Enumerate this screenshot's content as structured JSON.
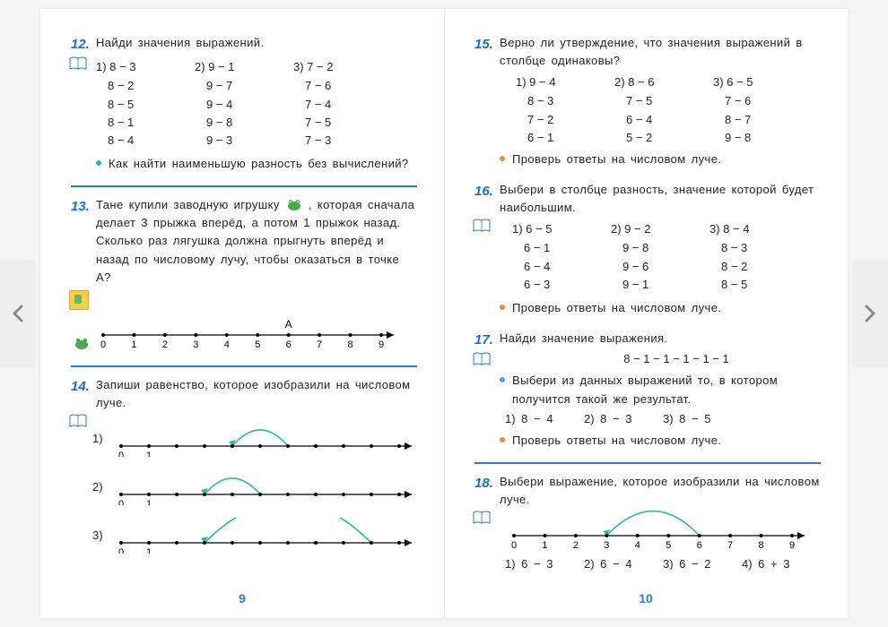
{
  "accent_color": "#1a6fc4",
  "rule_color": "#2a7cc9",
  "bullets": {
    "teal": "#2fb4ab",
    "blue": "#4aa3e8",
    "orange": "#f08a35"
  },
  "left_page": {
    "number": "9",
    "t12": {
      "num": "12.",
      "prompt": "Найди значения выражений.",
      "cols": [
        {
          "head": "1) 8 − 3",
          "rows": [
            "8 − 2",
            "8 − 5",
            "8 − 1",
            "8 − 4"
          ]
        },
        {
          "head": "2) 9 − 1",
          "rows": [
            "9 − 7",
            "9 − 4",
            "9 − 8",
            "9 − 3"
          ]
        },
        {
          "head": "3) 7 − 2",
          "rows": [
            "7 − 6",
            "7 − 4",
            "7 − 5",
            "7 − 3"
          ]
        }
      ],
      "note": "Как найти наименьшую разность без вычислений?"
    },
    "t13": {
      "num": "13.",
      "prompt_parts": [
        "Тане купили заводную игрушку ",
        ", которая сначала делает 3 прыжка вперёд, а потом 1 прыжок назад. Сколько раз лягушка должна прыгнуть вперёд и назад по числовому лучу, чтобы оказаться в точке А?"
      ],
      "axis": {
        "ticks": [
          "0",
          "1",
          "2",
          "3",
          "4",
          "5",
          "6",
          "7",
          "8",
          "9"
        ],
        "A_at": 6
      }
    },
    "t14": {
      "num": "14.",
      "prompt": "Запиши равенство, которое изобразили на числовом луче.",
      "lines": [
        {
          "label": "1)",
          "ticks01": true,
          "len": 10,
          "arc_from": 6,
          "arc_to": 4
        },
        {
          "label": "2)",
          "ticks01": true,
          "len": 10,
          "arc_from": 5,
          "arc_to": 3
        },
        {
          "label": "3)",
          "ticks01": true,
          "len": 10,
          "arc_from": 9,
          "arc_to": 3
        }
      ]
    }
  },
  "right_page": {
    "number": "10",
    "t15": {
      "num": "15.",
      "prompt": "Верно ли утверждение, что значения выражений в столбце одинаковы?",
      "cols": [
        {
          "head": "1) 9 − 4",
          "rows": [
            "8 − 3",
            "7 − 2",
            "6 − 1"
          ]
        },
        {
          "head": "2) 8 − 6",
          "rows": [
            "7 − 5",
            "6 − 4",
            "5 − 2"
          ]
        },
        {
          "head": "3) 6 − 5",
          "rows": [
            "7 − 6",
            "8 − 7",
            "9 − 8"
          ]
        }
      ],
      "note": "Проверь ответы на числовом луче."
    },
    "t16": {
      "num": "16.",
      "prompt": "Выбери в столбце разность, значение которой будет наибольшим.",
      "cols": [
        {
          "head": "1) 6 − 5",
          "rows": [
            "6 − 1",
            "6 − 4",
            "6 − 3"
          ]
        },
        {
          "head": "2) 9 − 2",
          "rows": [
            "9 − 8",
            "9 − 6",
            "9 − 1"
          ]
        },
        {
          "head": "3) 8 − 4",
          "rows": [
            "8 − 3",
            "8 − 2",
            "8 − 5"
          ]
        }
      ],
      "note": "Проверь ответы на числовом луче."
    },
    "t17": {
      "num": "17.",
      "prompt": "Найди значение выражения.",
      "expr": "8 − 1 − 1 − 1 − 1 − 1",
      "pick": "Выбери из данных выражений то, в котором получится такой же результат.",
      "options": [
        "1) 8 − 4",
        "2) 8 − 3",
        "3) 8 − 5"
      ],
      "note": "Проверь ответы на числовом луче."
    },
    "t18": {
      "num": "18.",
      "prompt": "Выбери выражение, которое изобразили на числовом луче.",
      "axis": {
        "ticks": [
          "0",
          "1",
          "2",
          "3",
          "4",
          "5",
          "6",
          "7",
          "8",
          "9"
        ],
        "arc_from": 6,
        "arc_to": 3
      },
      "options": [
        "1) 6 − 3",
        "2) 6 − 4",
        "3) 6 − 2",
        "4) 6 + 3"
      ]
    }
  }
}
